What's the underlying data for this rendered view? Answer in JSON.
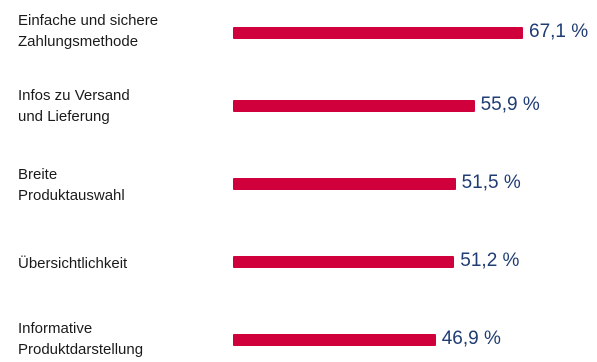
{
  "chart_data": {
    "type": "bar",
    "orientation": "horizontal",
    "categories": [
      "Einfache und sichere\nZahlungsmethode",
      "Infos zu Versand\nund Lieferung",
      "Breite\nProduktauswahl",
      "Übersichtlichkeit",
      "Informative\nProduktdarstellung"
    ],
    "values": [
      67.1,
      55.9,
      51.5,
      51.2,
      46.9
    ],
    "value_labels": [
      "67,1 %",
      "55,9 %",
      "51,5 %",
      "51,2 %",
      "46,9 %"
    ],
    "unit": "%",
    "title": "",
    "xlabel": "",
    "ylabel": "",
    "xlim": [
      0,
      100
    ],
    "grid": false,
    "legend": "none",
    "colors": {
      "bar": "#d0003c",
      "value_text": "#1f3c73",
      "label_text": "#1a1a1a"
    }
  }
}
